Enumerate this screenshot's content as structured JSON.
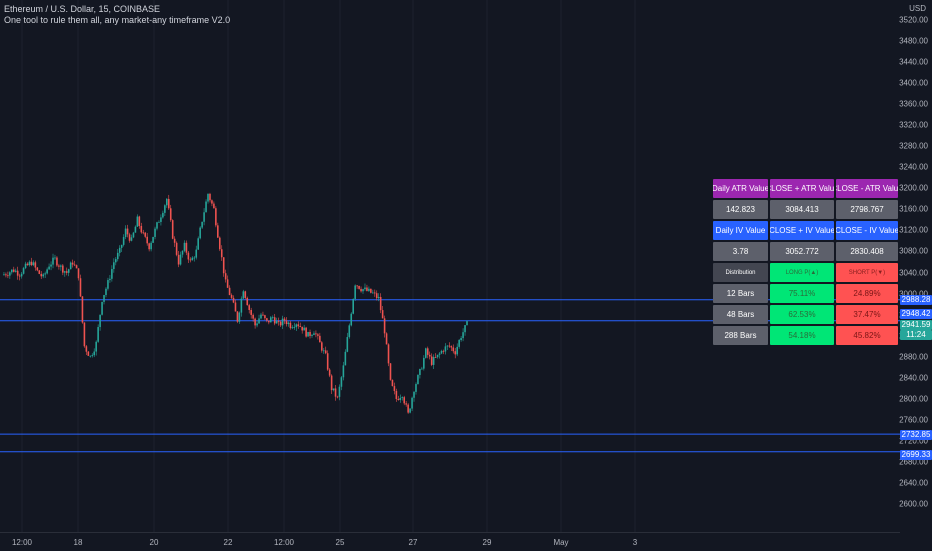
{
  "header": {
    "symbol_title": "Ethereum / U.S. Dollar, 15, COINBASE",
    "indicator_title": "One tool to rule them all, any market-any timeframe V2.0"
  },
  "price_axis": {
    "currency": "USD",
    "ticks": [
      "3520.00",
      "3480.00",
      "3440.00",
      "3400.00",
      "3360.00",
      "3320.00",
      "3280.00",
      "3240.00",
      "3200.00",
      "3160.00",
      "3120.00",
      "3080.00",
      "3040.00",
      "3000.00",
      "2960.00",
      "2920.00",
      "2880.00",
      "2840.00",
      "2800.00",
      "2760.00",
      "2720.00",
      "2680.00",
      "2640.00",
      "2600.00"
    ],
    "tags": {
      "upper_line": "2988.28",
      "mid_line": "2948.42",
      "last_price": "2941.59",
      "countdown": "11:24",
      "lower_line_1": "2732.85",
      "lower_line_2": "2699.33"
    }
  },
  "time_axis": {
    "ticks": [
      "12:00",
      "18",
      "20",
      "22",
      "12:00",
      "25",
      "27",
      "29",
      "May",
      "3"
    ]
  },
  "colors": {
    "background": "#131722",
    "candle_up": "#26a69a",
    "candle_down": "#ef5350",
    "level_line": "#2962ff",
    "last_price_tag": "#26a69a"
  },
  "stats_table": {
    "row1": [
      "Daily ATR Value",
      "CLOSE + ATR Value",
      "CLOSE - ATR Value"
    ],
    "row2": [
      "142.823",
      "3084.413",
      "2798.767"
    ],
    "row3": [
      "Daily IV Value",
      "CLOSE + IV Value",
      "CLOSE - IV Value"
    ],
    "row4": [
      "3.78",
      "3052.772",
      "2830.408"
    ],
    "row5": [
      "Distribution",
      "LONG P(▲)",
      "SHORT P(▼)"
    ],
    "row6": [
      "12 Bars",
      "75.11%",
      "24.89%"
    ],
    "row7": [
      "48 Bars",
      "62.53%",
      "37.47%"
    ],
    "row8": [
      "288 Bars",
      "54.18%",
      "45.82%"
    ]
  },
  "chart_data": {
    "type": "line",
    "title": "Ethereum / U.S. Dollar, 15, COINBASE",
    "y_unit": "USD",
    "ylim": [
      2580,
      3540
    ],
    "horizontal_levels": [
      2988.28,
      2948.42,
      2732.85,
      2699.33
    ],
    "series": [
      {
        "values": [
          3035,
          3040,
          3045,
          3038,
          3050,
          3060,
          3042,
          3030,
          3055,
          3065,
          3050,
          3040,
          3060,
          3035,
          2900,
          2880,
          2905,
          2990,
          3020,
          3060,
          3080,
          3120,
          3100,
          3140,
          3110,
          3090,
          3120,
          3150,
          3180,
          3110,
          3060,
          3090,
          3060,
          3080,
          3140,
          3190,
          3160,
          3090,
          3020,
          2990,
          2950,
          3010,
          2970,
          2940,
          2960,
          2945,
          2955,
          2940,
          2950,
          2940,
          2945,
          2935,
          2920,
          2930,
          2905,
          2880,
          2820,
          2800,
          2860,
          2940,
          3020,
          3010,
          3005,
          3000,
          2990,
          2930,
          2830,
          2800,
          2810,
          2770,
          2820,
          2850,
          2890,
          2870,
          2880,
          2895,
          2900,
          2890,
          2920,
          2941
        ]
      }
    ]
  }
}
